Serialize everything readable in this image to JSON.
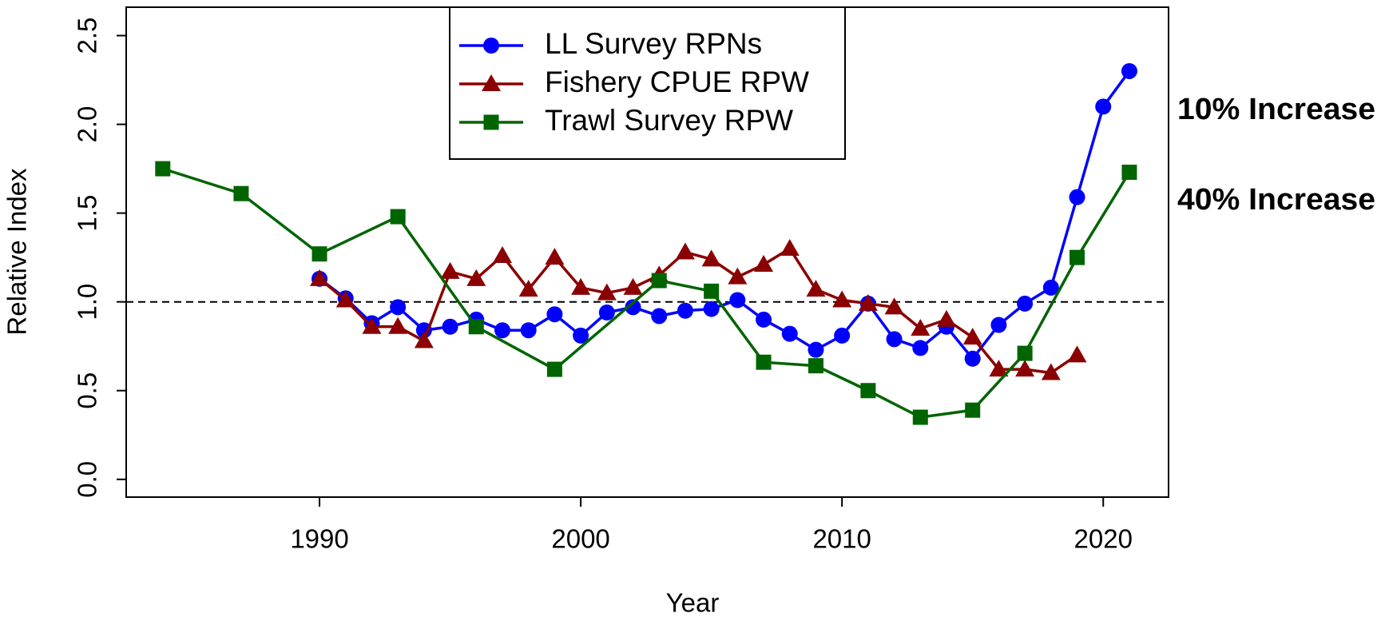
{
  "chart_data": {
    "type": "line",
    "xlabel": "Year",
    "ylabel": "Relative Index",
    "xlim": [
      1982.6,
      2022.5
    ],
    "ylim": [
      -0.1,
      2.66
    ],
    "xticks": [
      1990,
      2000,
      2010,
      2020
    ],
    "yticks": [
      {
        "value": 0,
        "label": "0.0"
      },
      0.5,
      {
        "value": 1,
        "label": "1.0"
      },
      1.5,
      {
        "value": 2,
        "label": "2.0"
      },
      2.5
    ],
    "hline": 1,
    "legend": "top",
    "series": [
      {
        "name": "LL Survey RPNs",
        "color": "#0000ff",
        "marker": "circle",
        "x": [
          1990,
          1991,
          1992,
          1993,
          1994,
          1995,
          1996,
          1997,
          1998,
          1999,
          2000,
          2001,
          2002,
          2003,
          2004,
          2005,
          2006,
          2007,
          2008,
          2009,
          2010,
          2011,
          2012,
          2013,
          2014,
          2015,
          2016,
          2017,
          2018,
          2019,
          2020,
          2021
        ],
        "values": [
          1.13,
          1.02,
          0.88,
          0.97,
          0.84,
          0.86,
          0.9,
          0.84,
          0.84,
          0.93,
          0.81,
          0.94,
          0.97,
          0.92,
          0.95,
          0.96,
          1.01,
          0.9,
          0.82,
          0.73,
          0.81,
          0.99,
          0.79,
          0.74,
          0.86,
          0.68,
          0.87,
          0.99,
          1.08,
          1.59,
          2.1,
          2.3
        ]
      },
      {
        "name": "Fishery CPUE RPW",
        "color": "#8b0000",
        "marker": "triangle",
        "x": [
          1990,
          1991,
          1992,
          1993,
          1994,
          1995,
          1996,
          1997,
          1998,
          1999,
          2000,
          2001,
          2002,
          2003,
          2004,
          2005,
          2006,
          2007,
          2008,
          2009,
          2010,
          2011,
          2012,
          2013,
          2014,
          2015,
          2016,
          2017,
          2018,
          2019
        ],
        "values": [
          1.13,
          1.01,
          0.86,
          0.86,
          0.78,
          1.17,
          1.13,
          1.26,
          1.07,
          1.25,
          1.08,
          1.05,
          1.08,
          1.15,
          1.28,
          1.24,
          1.14,
          1.21,
          1.3,
          1.07,
          1.01,
          0.99,
          0.97,
          0.85,
          0.9,
          0.8,
          0.62,
          0.62,
          0.6,
          0.7
        ]
      },
      {
        "name": "Trawl Survey RPW",
        "color": "#006400",
        "marker": "square",
        "x": [
          1984,
          1987,
          1990,
          1993,
          1996,
          1999,
          2003,
          2005,
          2007,
          2009,
          2011,
          2013,
          2015,
          2017,
          2019,
          2021
        ],
        "values": [
          1.75,
          1.61,
          1.27,
          1.48,
          0.86,
          0.62,
          1.12,
          1.06,
          0.66,
          0.64,
          0.5,
          0.35,
          0.39,
          0.71,
          1.25,
          1.73
        ]
      }
    ],
    "annotations": [
      {
        "text": "10% Increase",
        "color": "#1f1fbf"
      },
      {
        "text": "40% Increase",
        "color": "#3a8a3a"
      }
    ]
  }
}
